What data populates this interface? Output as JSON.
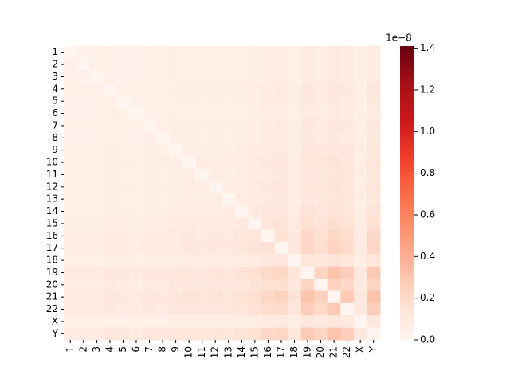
{
  "chart_data": {
    "type": "heatmap",
    "categories": [
      "1",
      "2",
      "3",
      "4",
      "5",
      "6",
      "7",
      "8",
      "9",
      "10",
      "11",
      "12",
      "13",
      "14",
      "15",
      "16",
      "17",
      "18",
      "19",
      "20",
      "21",
      "22",
      "X",
      "Y"
    ],
    "values": [
      [
        0,
        0.04,
        0.04,
        0.05,
        0.04,
        0.04,
        0.05,
        0.04,
        0.05,
        0.05,
        0.05,
        0.05,
        0.05,
        0.05,
        0.06,
        0.07,
        0.07,
        0.05,
        0.08,
        0.07,
        0.09,
        0.08,
        0.05,
        0.08
      ],
      [
        0.04,
        0,
        0.04,
        0.05,
        0.04,
        0.04,
        0.05,
        0.04,
        0.05,
        0.05,
        0.05,
        0.05,
        0.05,
        0.05,
        0.06,
        0.07,
        0.07,
        0.05,
        0.08,
        0.07,
        0.09,
        0.08,
        0.05,
        0.08
      ],
      [
        0.04,
        0.04,
        0,
        0.05,
        0.04,
        0.04,
        0.05,
        0.04,
        0.05,
        0.05,
        0.05,
        0.05,
        0.05,
        0.05,
        0.06,
        0.07,
        0.07,
        0.05,
        0.08,
        0.07,
        0.09,
        0.08,
        0.05,
        0.08
      ],
      [
        0.05,
        0.05,
        0.05,
        0,
        0.05,
        0.05,
        0.05,
        0.05,
        0.06,
        0.06,
        0.06,
        0.06,
        0.06,
        0.06,
        0.07,
        0.08,
        0.09,
        0.06,
        0.11,
        0.09,
        0.11,
        0.1,
        0.05,
        0.11
      ],
      [
        0.04,
        0.04,
        0.04,
        0.05,
        0,
        0.04,
        0.05,
        0.05,
        0.05,
        0.06,
        0.05,
        0.06,
        0.05,
        0.06,
        0.07,
        0.08,
        0.08,
        0.06,
        0.1,
        0.08,
        0.1,
        0.09,
        0.05,
        0.1
      ],
      [
        0.04,
        0.04,
        0.04,
        0.05,
        0.04,
        0,
        0.05,
        0.04,
        0.05,
        0.05,
        0.05,
        0.05,
        0.05,
        0.05,
        0.06,
        0.07,
        0.07,
        0.05,
        0.08,
        0.07,
        0.09,
        0.08,
        0.05,
        0.08
      ],
      [
        0.05,
        0.05,
        0.05,
        0.05,
        0.05,
        0.05,
        0,
        0.05,
        0.06,
        0.06,
        0.06,
        0.06,
        0.06,
        0.06,
        0.07,
        0.08,
        0.09,
        0.06,
        0.11,
        0.09,
        0.11,
        0.1,
        0.05,
        0.11
      ],
      [
        0.04,
        0.04,
        0.04,
        0.05,
        0.05,
        0.04,
        0.05,
        0,
        0.05,
        0.06,
        0.05,
        0.06,
        0.05,
        0.06,
        0.07,
        0.08,
        0.08,
        0.06,
        0.1,
        0.08,
        0.1,
        0.09,
        0.05,
        0.1
      ],
      [
        0.05,
        0.05,
        0.05,
        0.06,
        0.05,
        0.05,
        0.06,
        0.05,
        0,
        0.06,
        0.06,
        0.06,
        0.06,
        0.07,
        0.08,
        0.09,
        0.09,
        0.06,
        0.12,
        0.1,
        0.12,
        0.11,
        0.06,
        0.12
      ],
      [
        0.05,
        0.05,
        0.05,
        0.06,
        0.06,
        0.05,
        0.06,
        0.06,
        0.06,
        0,
        0.07,
        0.07,
        0.07,
        0.07,
        0.09,
        0.1,
        0.11,
        0.07,
        0.13,
        0.11,
        0.14,
        0.12,
        0.06,
        0.13
      ],
      [
        0.05,
        0.05,
        0.05,
        0.06,
        0.05,
        0.05,
        0.06,
        0.05,
        0.06,
        0.07,
        0,
        0.07,
        0.06,
        0.07,
        0.08,
        0.09,
        0.1,
        0.07,
        0.12,
        0.1,
        0.13,
        0.11,
        0.06,
        0.12
      ],
      [
        0.05,
        0.05,
        0.05,
        0.06,
        0.06,
        0.05,
        0.06,
        0.06,
        0.06,
        0.07,
        0.07,
        0,
        0.07,
        0.07,
        0.09,
        0.1,
        0.11,
        0.07,
        0.13,
        0.11,
        0.14,
        0.12,
        0.06,
        0.13
      ],
      [
        0.05,
        0.05,
        0.05,
        0.06,
        0.05,
        0.05,
        0.06,
        0.05,
        0.06,
        0.07,
        0.06,
        0.07,
        0,
        0.07,
        0.08,
        0.09,
        0.1,
        0.07,
        0.12,
        0.1,
        0.13,
        0.11,
        0.06,
        0.12
      ],
      [
        0.05,
        0.05,
        0.05,
        0.06,
        0.06,
        0.05,
        0.06,
        0.06,
        0.07,
        0.07,
        0.07,
        0.07,
        0.07,
        0,
        0.09,
        0.11,
        0.11,
        0.07,
        0.14,
        0.12,
        0.15,
        0.13,
        0.06,
        0.14
      ],
      [
        0.06,
        0.06,
        0.06,
        0.07,
        0.07,
        0.06,
        0.07,
        0.07,
        0.08,
        0.09,
        0.08,
        0.09,
        0.08,
        0.09,
        0,
        0.13,
        0.14,
        0.09,
        0.17,
        0.14,
        0.18,
        0.16,
        0.07,
        0.17
      ],
      [
        0.07,
        0.07,
        0.07,
        0.08,
        0.08,
        0.07,
        0.08,
        0.08,
        0.09,
        0.1,
        0.09,
        0.1,
        0.09,
        0.11,
        0.13,
        0,
        0.16,
        0.1,
        0.21,
        0.17,
        0.22,
        0.19,
        0.08,
        0.21
      ],
      [
        0.07,
        0.07,
        0.07,
        0.09,
        0.08,
        0.07,
        0.09,
        0.08,
        0.09,
        0.11,
        0.1,
        0.11,
        0.1,
        0.11,
        0.14,
        0.16,
        0,
        0.11,
        0.22,
        0.18,
        0.24,
        0.2,
        0.09,
        0.22
      ],
      [
        0.05,
        0.05,
        0.05,
        0.06,
        0.06,
        0.05,
        0.06,
        0.06,
        0.06,
        0.07,
        0.07,
        0.07,
        0.07,
        0.07,
        0.09,
        0.1,
        0.11,
        0,
        0.13,
        0.11,
        0.14,
        0.12,
        0.06,
        0.13
      ],
      [
        0.08,
        0.08,
        0.08,
        0.11,
        0.1,
        0.08,
        0.11,
        0.1,
        0.12,
        0.13,
        0.12,
        0.13,
        0.12,
        0.14,
        0.17,
        0.21,
        0.22,
        0.13,
        0,
        0.23,
        0.31,
        0.26,
        0.11,
        0.28
      ],
      [
        0.07,
        0.07,
        0.07,
        0.09,
        0.08,
        0.07,
        0.09,
        0.08,
        0.1,
        0.11,
        0.1,
        0.11,
        0.1,
        0.12,
        0.14,
        0.17,
        0.18,
        0.11,
        0.23,
        0,
        0.25,
        0.21,
        0.09,
        0.23
      ],
      [
        0.09,
        0.09,
        0.09,
        0.11,
        0.1,
        0.09,
        0.11,
        0.1,
        0.12,
        0.14,
        0.13,
        0.14,
        0.13,
        0.15,
        0.18,
        0.22,
        0.24,
        0.14,
        0.31,
        0.25,
        0,
        0.28,
        0.11,
        0.31
      ],
      [
        0.08,
        0.08,
        0.08,
        0.1,
        0.09,
        0.08,
        0.1,
        0.09,
        0.11,
        0.12,
        0.11,
        0.12,
        0.11,
        0.13,
        0.16,
        0.19,
        0.2,
        0.12,
        0.26,
        0.21,
        0.28,
        0,
        0.1,
        0.26
      ],
      [
        0.05,
        0.05,
        0.05,
        0.05,
        0.05,
        0.05,
        0.05,
        0.05,
        0.06,
        0.06,
        0.06,
        0.06,
        0.06,
        0.06,
        0.07,
        0.08,
        0.09,
        0.06,
        0.11,
        0.09,
        0.11,
        0.1,
        0,
        0.11
      ],
      [
        0.08,
        0.08,
        0.08,
        0.11,
        0.1,
        0.08,
        0.11,
        0.1,
        0.12,
        0.13,
        0.12,
        0.13,
        0.12,
        0.14,
        0.17,
        0.21,
        0.22,
        0.13,
        0.28,
        0.23,
        0.31,
        0.26,
        0.11,
        0
      ]
    ],
    "colormap": "Reds",
    "vlim": [
      0,
      1.41
    ],
    "cticks": [
      {
        "value": 0,
        "label": "0.0"
      },
      0.2,
      0.4,
      0.6,
      0.8,
      {
        "value": 1,
        "label": "1.0"
      },
      1.2,
      1.4
    ],
    "offset_label": "1e−8"
  }
}
